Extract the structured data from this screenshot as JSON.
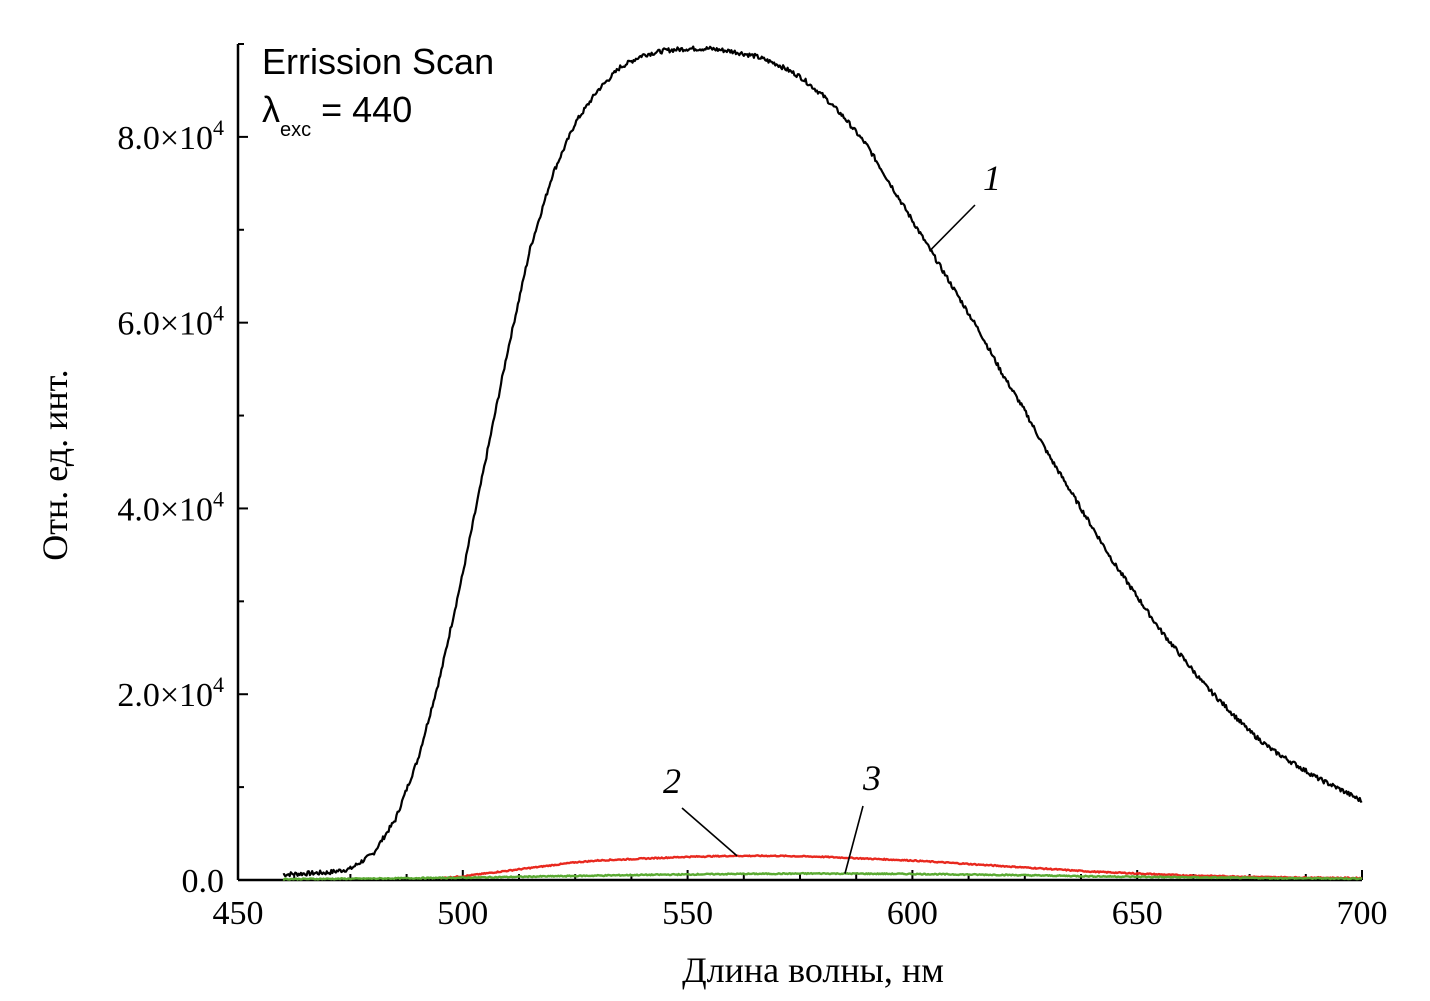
{
  "chart_data": {
    "type": "line",
    "title": "",
    "annotation": {
      "line1": "Errission Scan",
      "lambda_symbol": "λ",
      "lambda_sub": "exc",
      "lambda_rest": " = 440"
    },
    "xlabel": "Длина волны, нм",
    "ylabel": "Отн. ед. инт.",
    "xlim": [
      450,
      700
    ],
    "ylim": [
      0,
      90000
    ],
    "x_ticks": [
      450,
      500,
      550,
      600,
      650,
      700
    ],
    "x_tick_labels": [
      "450",
      "500",
      "550",
      "600",
      "650",
      "700"
    ],
    "y_ticks": [
      0,
      20000,
      40000,
      60000,
      80000
    ],
    "y_tick_labels": [
      {
        "mant": "0.0",
        "exp": ""
      },
      {
        "mant": "2.0×10",
        "exp": "4"
      },
      {
        "mant": "4.0×10",
        "exp": "4"
      },
      {
        "mant": "6.0×10",
        "exp": "4"
      },
      {
        "mant": "8.0×10",
        "exp": "4"
      }
    ],
    "grid": false,
    "legend": "none",
    "series": [
      {
        "label": "1",
        "color": "#000000",
        "x": [
          460,
          470,
          475,
          480,
          485,
          490,
          495,
          500,
          505,
          510,
          515,
          520,
          525,
          530,
          535,
          540,
          545,
          550,
          555,
          560,
          565,
          570,
          575,
          580,
          585,
          590,
          595,
          600,
          605,
          610,
          615,
          620,
          625,
          630,
          635,
          640,
          645,
          650,
          655,
          660,
          665,
          670,
          675,
          680,
          685,
          690,
          695,
          700
        ],
        "y": [
          600,
          800,
          1200,
          2800,
          6500,
          13000,
          22000,
          33000,
          45000,
          57000,
          68000,
          76000,
          81500,
          85000,
          87500,
          88800,
          89300,
          89500,
          89500,
          89200,
          88700,
          87800,
          86500,
          84500,
          82000,
          79000,
          75000,
          71000,
          67000,
          63000,
          59000,
          54500,
          50500,
          46000,
          42000,
          38000,
          34000,
          30500,
          27000,
          24000,
          21000,
          18500,
          16000,
          14000,
          12500,
          11000,
          9800,
          8500
        ]
      },
      {
        "label": "2",
        "color": "#e8281e",
        "x": [
          495,
          500,
          505,
          510,
          515,
          520,
          525,
          530,
          540,
          550,
          560,
          570,
          580,
          590,
          600,
          610,
          620,
          630,
          640,
          650,
          660,
          670,
          680,
          690,
          700
        ],
        "y": [
          200,
          400,
          700,
          1000,
          1300,
          1600,
          1900,
          2100,
          2300,
          2500,
          2600,
          2600,
          2500,
          2300,
          2100,
          1800,
          1500,
          1200,
          900,
          700,
          500,
          400,
          300,
          250,
          200
        ]
      },
      {
        "label": "3",
        "color": "#5aaa32",
        "x": [
          460,
          480,
          500,
          520,
          540,
          560,
          580,
          600,
          620,
          640,
          660,
          680,
          700
        ],
        "y": [
          100,
          150,
          250,
          400,
          550,
          650,
          700,
          650,
          550,
          400,
          300,
          200,
          150
        ]
      }
    ]
  }
}
